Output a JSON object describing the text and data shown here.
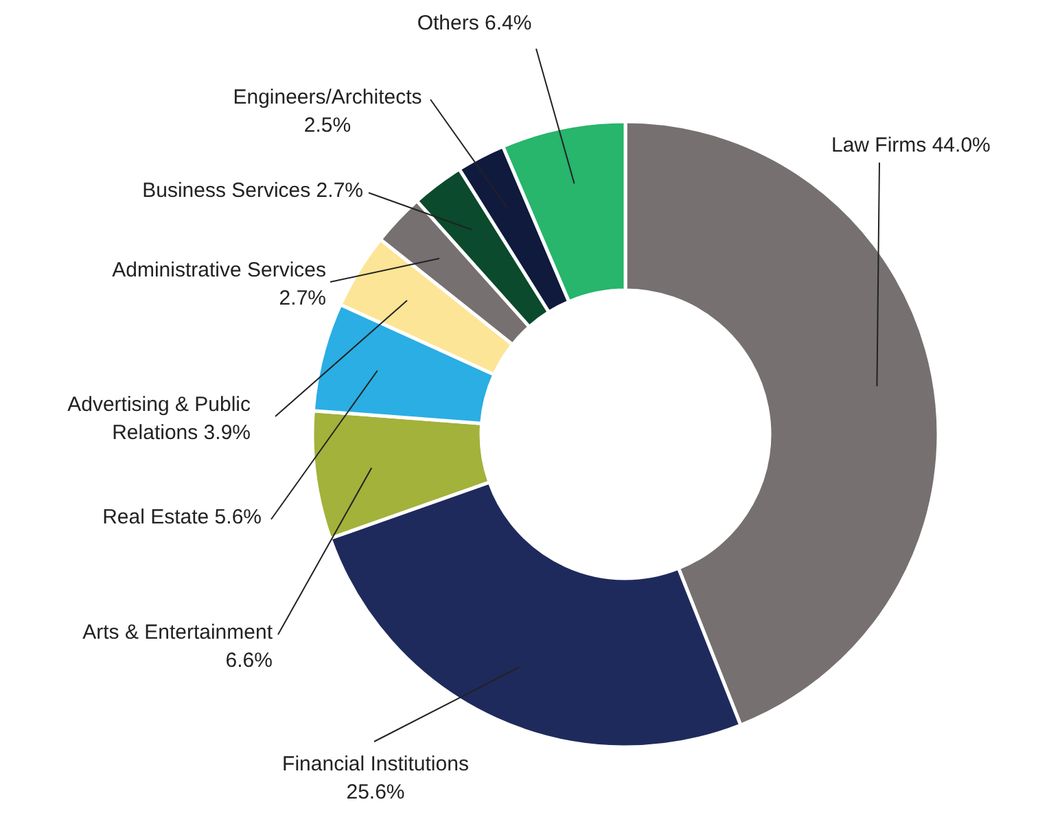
{
  "chart_data": {
    "type": "donut",
    "categories": [
      "Law Firms",
      "Financial Institutions",
      "Arts & Entertainment",
      "Real Estate",
      "Advertising & Public Relations",
      "Administrative Services",
      "Business Services",
      "Engineers/Architects",
      "Others"
    ],
    "values": [
      44.0,
      25.6,
      6.6,
      5.6,
      3.9,
      2.7,
      2.7,
      2.5,
      6.4
    ],
    "colors": [
      "#767070",
      "#1f2a5c",
      "#a2b23a",
      "#2aaee4",
      "#fde597",
      "#767070",
      "#0b4a2c",
      "#101a3d",
      "#28b56c"
    ],
    "value_labels": [
      "44.0%",
      "25.6%",
      "6.6%",
      "5.6%",
      "3.9%",
      "2.7%",
      "2.7%",
      "2.5%",
      "6.4%"
    ]
  }
}
